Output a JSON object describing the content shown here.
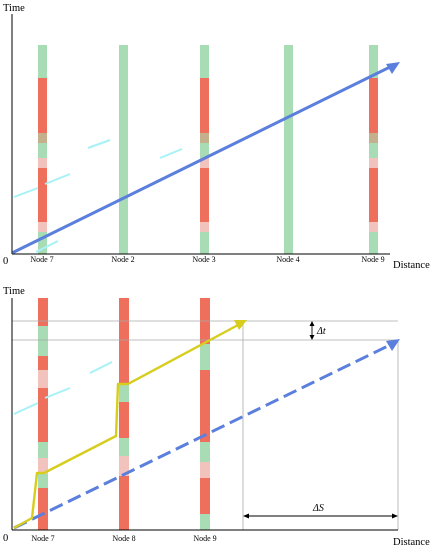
{
  "top_panel": {
    "y_axis_label": "Time",
    "x_axis_label": "Distance",
    "origin_label": "0",
    "nodes": [
      "Node 7",
      "Node 2",
      "Node 3",
      "Node 4",
      "Node 9"
    ]
  },
  "bottom_panel": {
    "y_axis_label": "Time",
    "x_axis_label": "Distance",
    "origin_label": "0",
    "nodes": [
      "Node 7",
      "Node 8",
      "Node 9"
    ],
    "delta_t_label": "Δt",
    "delta_s_label": "ΔS"
  },
  "colors": {
    "green_phase": "#a8dcb4",
    "red_phase": "#ee6f5c",
    "amber_phase": "#c4b08c",
    "pink_phase": "#f2c2bc",
    "blue_trajectory": "#5b7fdc",
    "yellow_trajectory": "#d6cd1c",
    "cyan_dash": "#a6f2f6"
  }
}
